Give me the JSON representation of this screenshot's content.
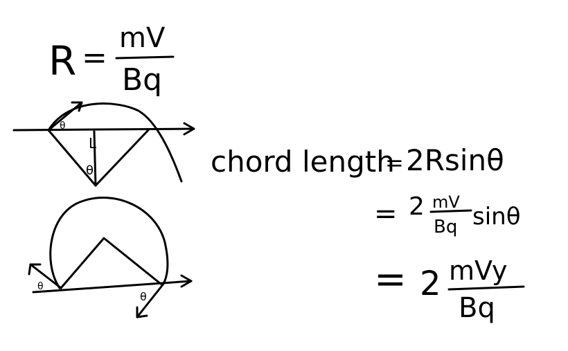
{
  "formula_radius": {
    "lhs": "R",
    "eq": "=",
    "numerator": "mV",
    "denominator": "Bq"
  },
  "diagram_top": {
    "angle_label_top": "θ",
    "angle_label_center": "θ",
    "right_angle_mark": "L"
  },
  "diagram_bottom": {
    "angle_label_left": "θ",
    "angle_label_right": "θ"
  },
  "derivation": {
    "line1_text": "chord length",
    "line1_eq": "=",
    "line1_rhs": "2Rsinθ",
    "line2_eq": "=",
    "line2_coef": "2",
    "line2_numerator": "mV",
    "line2_denominator": "Bq",
    "line2_trig": "sinθ",
    "line3_eq": "=",
    "line3_coef": "2",
    "line3_numerator": "mVy",
    "line3_denominator": "Bq"
  }
}
